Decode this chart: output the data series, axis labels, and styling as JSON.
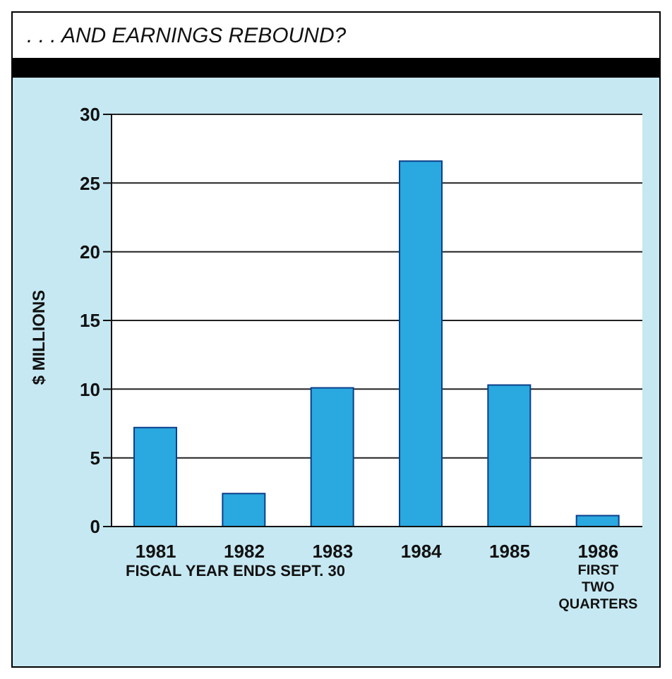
{
  "chart_data": {
    "type": "bar",
    "title": ". . . AND EARNINGS REBOUND?",
    "ylabel": "$ MILLIONS",
    "categories": [
      "1981",
      "1982",
      "1983",
      "1984",
      "1985",
      "1986\nFIRST\nTWO\nQUARTERS"
    ],
    "values": [
      7.2,
      2.4,
      10.1,
      26.6,
      10.3,
      0.8
    ],
    "color": "#2aa8e0",
    "ylim": [
      0,
      30
    ],
    "yticks": [
      0,
      5,
      10,
      15,
      20,
      25,
      30
    ],
    "grid": "y",
    "annotations": [
      "FISCAL YEAR ENDS SEPT. 30"
    ]
  }
}
